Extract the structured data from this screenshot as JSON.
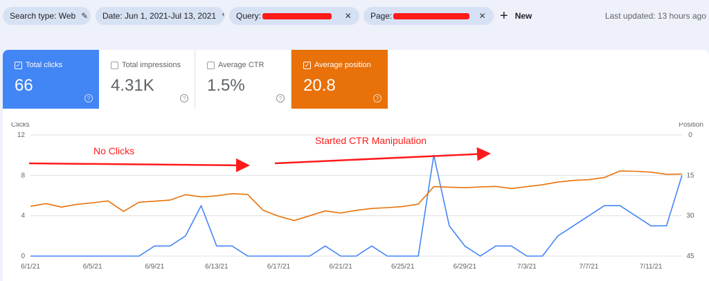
{
  "filters": [
    {
      "label": "Search type: Web",
      "icon": "pencil-icon"
    },
    {
      "label": "Date: Jun 1, 2021-Jul 13, 2021",
      "icon": "pencil-icon"
    },
    {
      "label": "Query:",
      "icon": "close-icon",
      "redacted": true
    },
    {
      "label": "Page:",
      "icon": "close-icon",
      "redacted": true
    }
  ],
  "new_label": "New",
  "last_updated": "Last updated: 13 hours ago",
  "metrics": [
    {
      "label": "Total clicks",
      "value": "66",
      "checked": true,
      "color": "#4285f4"
    },
    {
      "label": "Total impressions",
      "value": "4.31K",
      "checked": false
    },
    {
      "label": "Average CTR",
      "value": "1.5%",
      "checked": false
    },
    {
      "label": "Average position",
      "value": "20.8",
      "checked": true,
      "color": "#e8710a"
    }
  ],
  "colors": {
    "clicks": "#4285f4",
    "position": "#e8710a",
    "annotation": "#ff1a1a",
    "grid": "#e0e0e0"
  },
  "annotations": {
    "left": "No Clicks",
    "right": "Started CTR Manipulation"
  },
  "chart_data": {
    "type": "line",
    "left_axis_label": "Clicks",
    "right_axis_label": "Position",
    "left_ticks": [
      "0",
      "4",
      "8",
      "12"
    ],
    "right_ticks": [
      "45",
      "30",
      "15",
      "0"
    ],
    "x_tick_labels": [
      "6/1/21",
      "6/5/21",
      "6/9/21",
      "6/13/21",
      "6/17/21",
      "6/21/21",
      "6/25/21",
      "6/29/21",
      "7/3/21",
      "7/7/21",
      "7/11/21"
    ],
    "ylim_left": [
      0,
      12
    ],
    "ylim_right": [
      0,
      45
    ],
    "right_reversed": true,
    "grid": true,
    "x": [
      "6/1",
      "6/2",
      "6/3",
      "6/4",
      "6/5",
      "6/6",
      "6/7",
      "6/8",
      "6/9",
      "6/10",
      "6/11",
      "6/12",
      "6/13",
      "6/14",
      "6/15",
      "6/16",
      "6/17",
      "6/18",
      "6/19",
      "6/20",
      "6/21",
      "6/22",
      "6/23",
      "6/24",
      "6/25",
      "6/26",
      "6/27",
      "6/28",
      "6/29",
      "6/30",
      "7/1",
      "7/2",
      "7/3",
      "7/4",
      "7/5",
      "7/6",
      "7/7",
      "7/8",
      "7/9",
      "7/10",
      "7/11",
      "7/12",
      "7/13"
    ],
    "series": [
      {
        "name": "Clicks",
        "axis": "left",
        "values": [
          0,
          0,
          0,
          0,
          0,
          0,
          0,
          0,
          1,
          1,
          2,
          5,
          1,
          1,
          0,
          0,
          0,
          0,
          0,
          1,
          0,
          0,
          1,
          0,
          0,
          0,
          10,
          3,
          1,
          0,
          1,
          1,
          0,
          0,
          2,
          3,
          4,
          5,
          5,
          4,
          3,
          3,
          8
        ]
      },
      {
        "name": "Average position",
        "axis": "right",
        "values": [
          26.5,
          25.5,
          26.8,
          25.8,
          25.2,
          24.5,
          28.4,
          25.0,
          24.6,
          24.2,
          22.2,
          23.0,
          22.6,
          21.8,
          22.1,
          28.0,
          30.2,
          31.8,
          30.0,
          28.2,
          29.0,
          28.0,
          27.3,
          27.0,
          26.6,
          25.7,
          19.2,
          19.4,
          19.6,
          19.3,
          19.1,
          19.9,
          19.2,
          18.5,
          17.5,
          16.9,
          16.6,
          15.8,
          13.4,
          13.5,
          13.8,
          14.6,
          14.5
        ]
      }
    ]
  }
}
